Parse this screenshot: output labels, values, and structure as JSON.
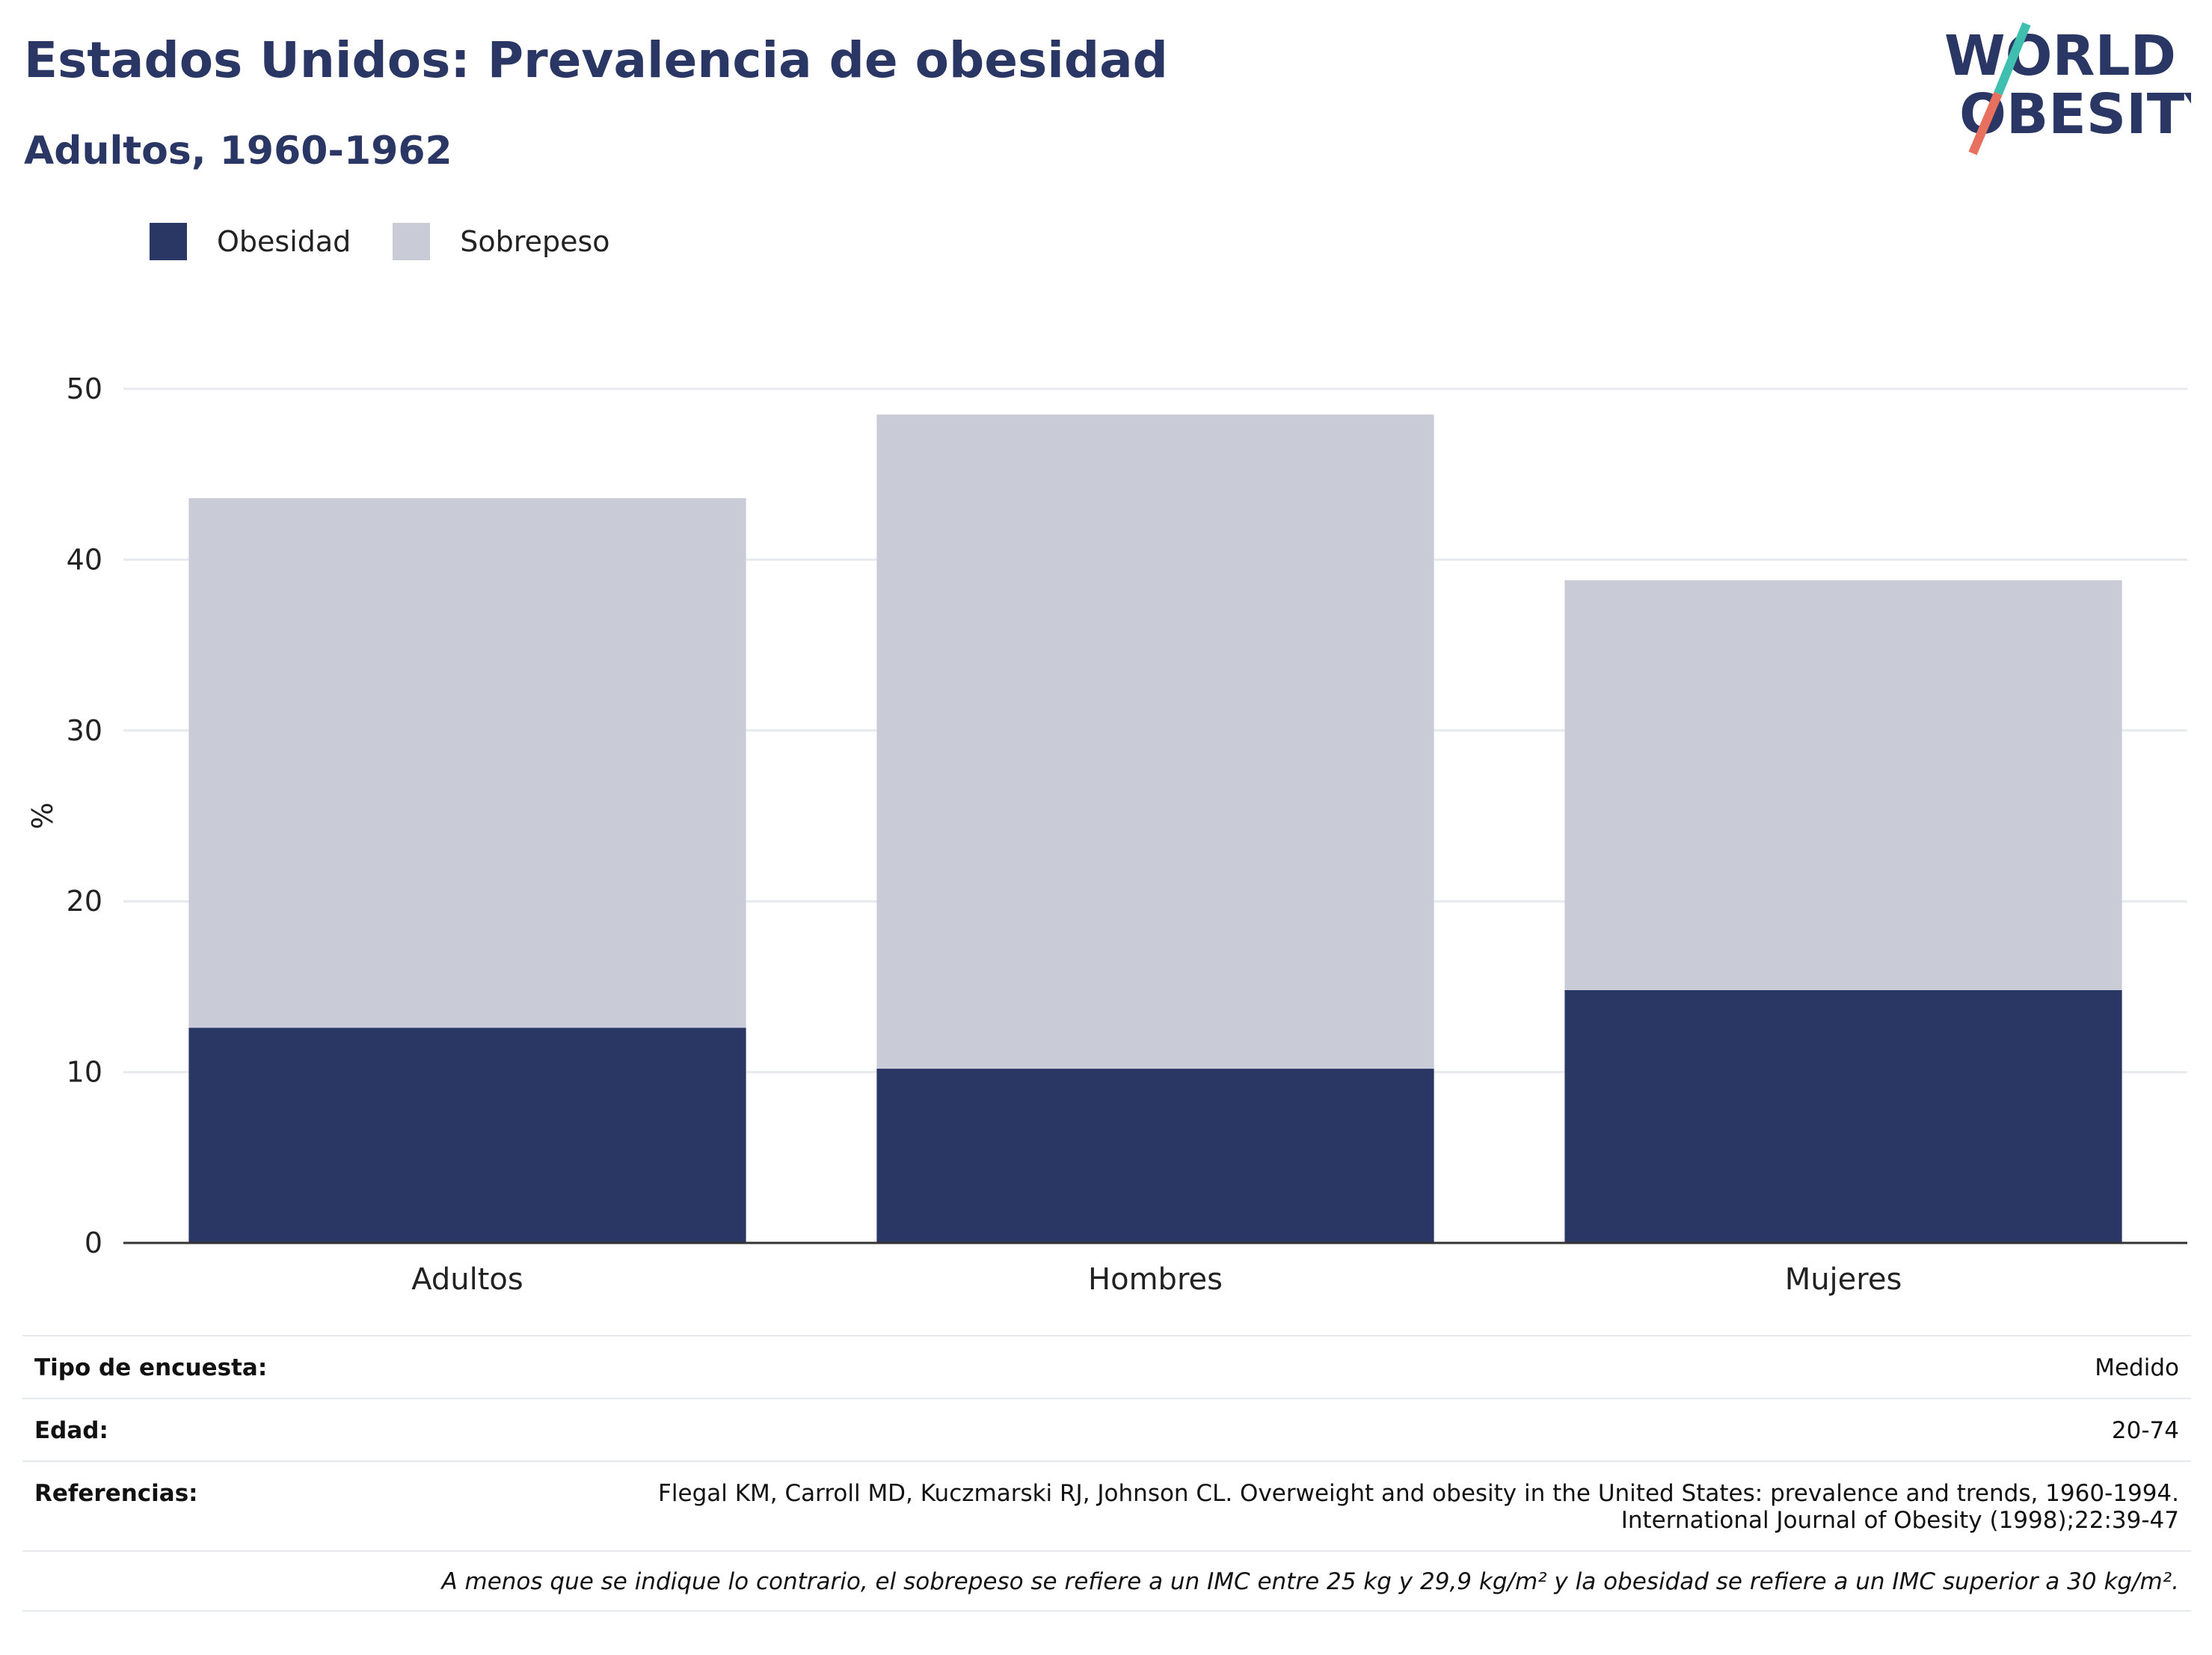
{
  "header": {
    "title": "Estados Unidos: Prevalencia de obesidad",
    "subtitle": "Adultos, 1960-1962"
  },
  "logo": {
    "line1": "WORLD",
    "line2": "OBESITY"
  },
  "colors": {
    "obesity": "#2a3764",
    "overweight": "#c9cbd6",
    "grid": "#e8e9ee",
    "logo_teal": "#3fbfb0",
    "logo_coral": "#e8705e"
  },
  "legend": {
    "items": [
      {
        "label": "Obesidad",
        "color": "#2a3764"
      },
      {
        "label": "Sobrepeso",
        "color": "#c9cbd6"
      }
    ]
  },
  "chart_data": {
    "type": "bar",
    "stacked": true,
    "categories": [
      "Adultos",
      "Hombres",
      "Mujeres"
    ],
    "series": [
      {
        "name": "Obesidad",
        "values": [
          12.6,
          10.2,
          14.8
        ]
      },
      {
        "name": "Sobrepeso",
        "values": [
          31.0,
          38.3,
          24.0
        ]
      }
    ],
    "ylabel": "%",
    "ylim": [
      0,
      50
    ],
    "yticks": [
      0,
      10,
      20,
      30,
      40,
      50
    ],
    "grid": true,
    "legend_position": "top-left"
  },
  "info": {
    "rows": [
      {
        "key": "Tipo de encuesta:",
        "value": "Medido"
      },
      {
        "key": "Edad:",
        "value": "20-74"
      },
      {
        "key": "Referencias:",
        "value": "Flegal KM, Carroll MD, Kuczmarski RJ, Johnson CL. Overweight and obesity in the United States: prevalence and trends, 1960-1994.\nInternational Journal of Obesity (1998);22:39-47"
      }
    ],
    "note": "A menos que se indique lo contrario, el sobrepeso se refiere a un IMC entre 25 kg y 29,9 kg/m² y la obesidad se refiere a un IMC superior a 30 kg/m²."
  }
}
